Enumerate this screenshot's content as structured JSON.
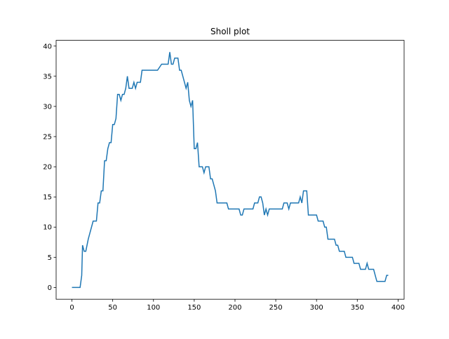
{
  "chart_data": {
    "type": "line",
    "title": "Sholl plot",
    "x": [
      0,
      2,
      4,
      6,
      8,
      10,
      12,
      13,
      15,
      17,
      20,
      22,
      24,
      26,
      28,
      30,
      32,
      34,
      36,
      38,
      40,
      42,
      44,
      46,
      48,
      50,
      52,
      54,
      56,
      58,
      60,
      62,
      64,
      66,
      68,
      70,
      72,
      74,
      76,
      78,
      80,
      82,
      84,
      86,
      90,
      95,
      100,
      105,
      110,
      115,
      118,
      120,
      122,
      124,
      126,
      128,
      130,
      132,
      134,
      136,
      138,
      140,
      142,
      144,
      146,
      148,
      150,
      152,
      154,
      156,
      158,
      160,
      162,
      164,
      166,
      168,
      170,
      172,
      174,
      176,
      178,
      180,
      185,
      190,
      192,
      195,
      200,
      205,
      207,
      209,
      211,
      215,
      220,
      222,
      224,
      226,
      228,
      230,
      232,
      234,
      236,
      238,
      240,
      242,
      245,
      250,
      255,
      258,
      260,
      262,
      264,
      266,
      268,
      270,
      275,
      278,
      280,
      282,
      284,
      286,
      288,
      290,
      295,
      300,
      302,
      305,
      308,
      310,
      312,
      314,
      316,
      320,
      322,
      324,
      326,
      328,
      330,
      334,
      336,
      340,
      344,
      346,
      350,
      352,
      354,
      358,
      360,
      362,
      364,
      366,
      368,
      370,
      372,
      374,
      376,
      380,
      384,
      386,
      388
    ],
    "series": [
      {
        "color": "#1f77b4",
        "values": [
          0,
          0,
          0,
          0,
          0,
          0,
          2,
          7,
          6,
          6,
          8,
          9,
          10,
          11,
          11,
          11,
          14,
          14,
          16,
          16,
          21,
          21,
          23,
          24,
          24,
          27,
          27,
          28,
          32,
          32,
          31,
          32,
          32,
          33,
          35,
          33,
          33,
          33,
          34,
          33,
          34,
          34,
          34,
          36,
          36,
          36,
          36,
          36,
          37,
          37,
          37,
          39,
          37,
          37,
          38,
          38,
          38,
          36,
          36,
          35,
          34,
          33,
          34,
          31,
          30,
          31,
          23,
          23,
          24,
          20,
          20,
          20,
          19,
          20,
          20,
          20,
          18,
          18,
          17,
          16,
          14,
          14,
          14,
          14,
          13,
          13,
          13,
          13,
          12,
          12,
          13,
          13,
          13,
          13,
          14,
          14,
          14,
          15,
          15,
          14,
          12,
          13,
          12,
          13,
          13,
          13,
          13,
          13,
          14,
          14,
          14,
          13,
          14,
          14,
          14,
          14,
          15,
          14,
          16,
          16,
          16,
          12,
          12,
          12,
          11,
          11,
          11,
          10,
          10,
          8,
          8,
          8,
          8,
          7,
          7,
          6,
          6,
          6,
          5,
          5,
          5,
          4,
          4,
          4,
          3,
          3,
          3,
          4,
          3,
          3,
          3,
          3,
          2,
          1,
          1,
          1,
          1,
          2,
          2
        ]
      }
    ],
    "xlim": [
      -19.4,
      407.4
    ],
    "ylim": [
      -1.95,
      40.95
    ],
    "xticks": [
      0,
      50,
      100,
      150,
      200,
      250,
      300,
      350,
      400
    ],
    "yticks": [
      0,
      5,
      10,
      15,
      20,
      25,
      30,
      35,
      40
    ]
  }
}
